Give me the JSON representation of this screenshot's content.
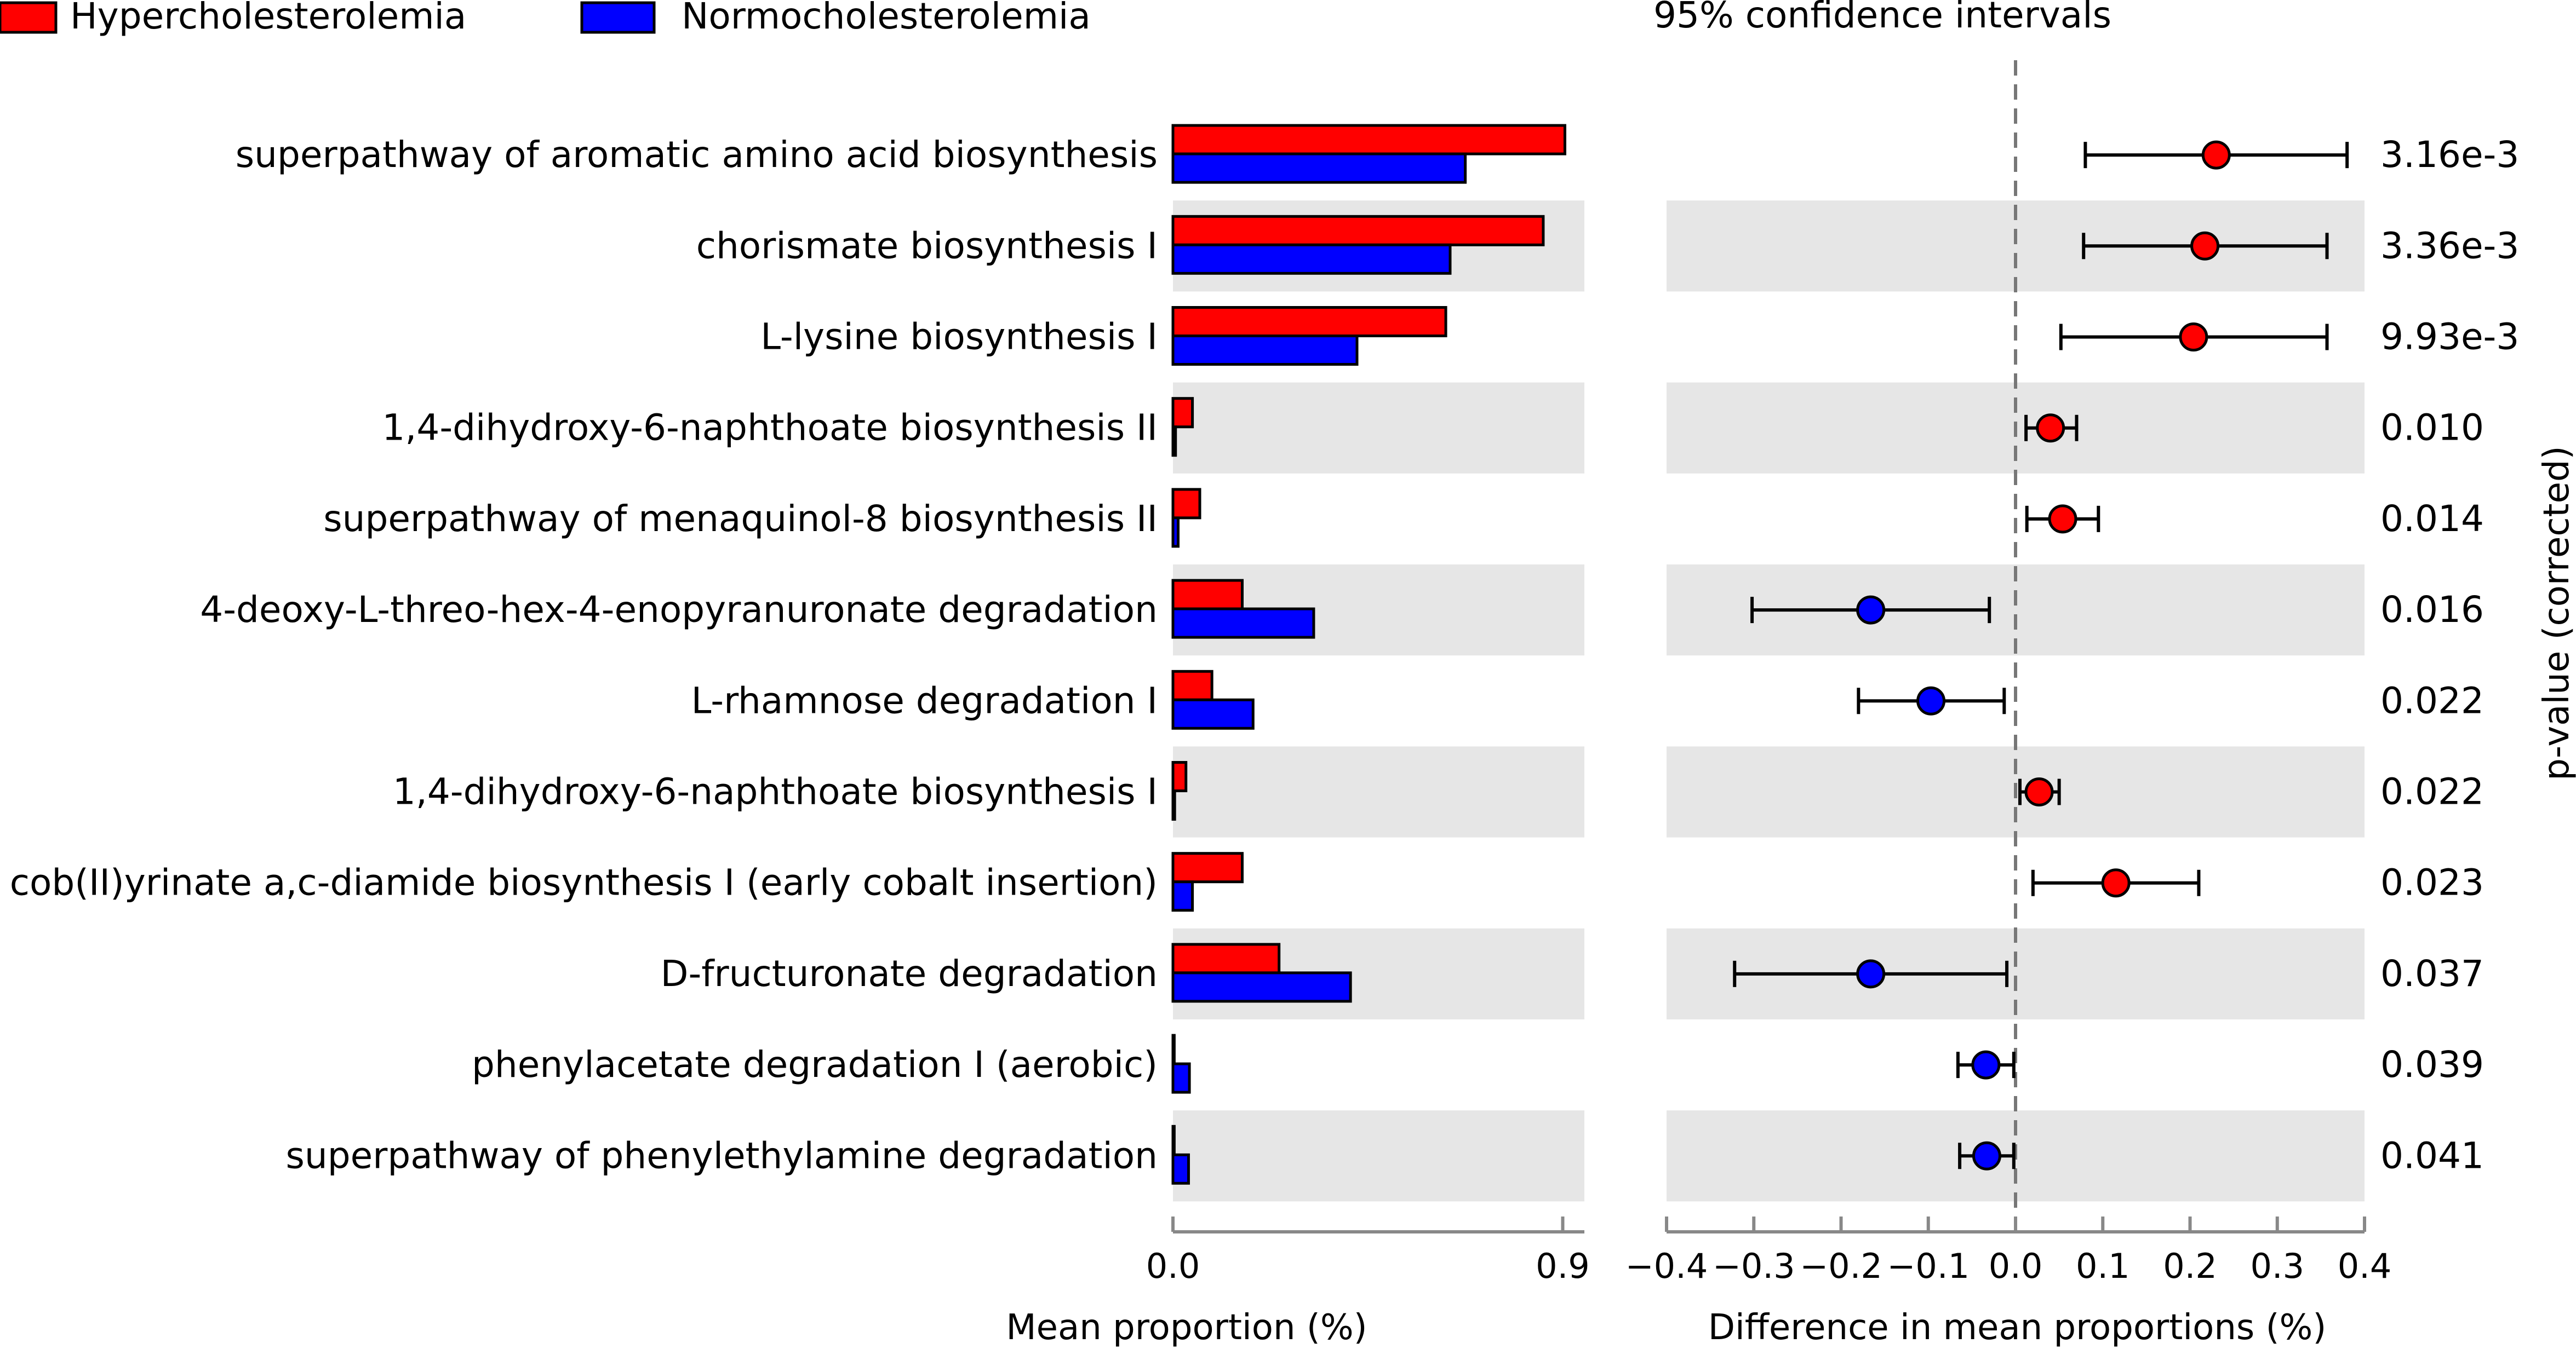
{
  "chart_data": {
    "type": "bar",
    "legend": [
      {
        "name": "Hypercholesterolemia",
        "color": "#ff0000"
      },
      {
        "name": "Normocholesterolemia",
        "color": "#0000ff"
      }
    ],
    "ci_title": "95% confidence intervals",
    "left_panel": {
      "xlabel": "Mean proportion (%)",
      "xlim": [
        0.0,
        0.95
      ],
      "ticks": [
        "0.0",
        "0.9"
      ],
      "tick_values": [
        0.0,
        0.9
      ]
    },
    "right_panel": {
      "xlabel": "Difference in mean proportions (%)",
      "xlim": [
        -0.4,
        0.4
      ],
      "ticks": [
        "−0.4",
        "−0.3",
        "−0.2",
        "−0.1",
        "0.0",
        "0.1",
        "0.2",
        "0.3",
        "0.4"
      ],
      "tick_values": [
        -0.4,
        -0.3,
        -0.2,
        -0.1,
        0.0,
        0.1,
        0.2,
        0.3,
        0.4
      ]
    },
    "pvalue_label": "p-value (corrected)",
    "categories": [
      "superpathway of aromatic amino acid biosynthesis",
      "chorismate biosynthesis I",
      "L-lysine biosynthesis I",
      "1,4-dihydroxy-6-naphthoate biosynthesis II",
      "superpathway of menaquinol-8 biosynthesis II",
      "4-deoxy-L-threo-hex-4-enopyranuronate degradation",
      "L-rhamnose degradation I",
      "1,4-dihydroxy-6-naphthoate biosynthesis I",
      "cob(II)yrinate a,c-diamide biosynthesis I (early cobalt insertion)",
      "D-fructuronate degradation",
      "phenylacetate degradation I (aerobic)",
      "superpathway of phenylethylamine degradation"
    ],
    "series": [
      {
        "name": "Hypercholesterolemia",
        "values": [
          0.905,
          0.855,
          0.63,
          0.045,
          0.062,
          0.16,
          0.09,
          0.03,
          0.16,
          0.245,
          0.003,
          0.003
        ]
      },
      {
        "name": "Normocholesterolemia",
        "values": [
          0.675,
          0.64,
          0.425,
          0.006,
          0.012,
          0.325,
          0.185,
          0.004,
          0.045,
          0.41,
          0.038,
          0.036
        ]
      }
    ],
    "differences": [
      {
        "mean": 0.23,
        "lo": 0.08,
        "hi": 0.38,
        "group": "Hypercholesterolemia"
      },
      {
        "mean": 0.217,
        "lo": 0.078,
        "hi": 0.357,
        "group": "Hypercholesterolemia"
      },
      {
        "mean": 0.204,
        "lo": 0.052,
        "hi": 0.357,
        "group": "Hypercholesterolemia"
      },
      {
        "mean": 0.04,
        "lo": 0.012,
        "hi": 0.07,
        "group": "Hypercholesterolemia"
      },
      {
        "mean": 0.054,
        "lo": 0.013,
        "hi": 0.095,
        "group": "Hypercholesterolemia"
      },
      {
        "mean": -0.166,
        "lo": -0.302,
        "hi": -0.03,
        "group": "Normocholesterolemia"
      },
      {
        "mean": -0.097,
        "lo": -0.18,
        "hi": -0.013,
        "group": "Normocholesterolemia"
      },
      {
        "mean": 0.027,
        "lo": 0.005,
        "hi": 0.05,
        "group": "Hypercholesterolemia"
      },
      {
        "mean": 0.115,
        "lo": 0.02,
        "hi": 0.21,
        "group": "Hypercholesterolemia"
      },
      {
        "mean": -0.166,
        "lo": -0.322,
        "hi": -0.01,
        "group": "Normocholesterolemia"
      },
      {
        "mean": -0.034,
        "lo": -0.066,
        "hi": -0.002,
        "group": "Normocholesterolemia"
      },
      {
        "mean": -0.033,
        "lo": -0.064,
        "hi": -0.002,
        "group": "Normocholesterolemia"
      }
    ],
    "pvalues": [
      "3.16e-3",
      "3.36e-3",
      "9.93e-3",
      "0.010",
      "0.014",
      "0.016",
      "0.022",
      "0.022",
      "0.023",
      "0.037",
      "0.039",
      "0.041"
    ]
  }
}
